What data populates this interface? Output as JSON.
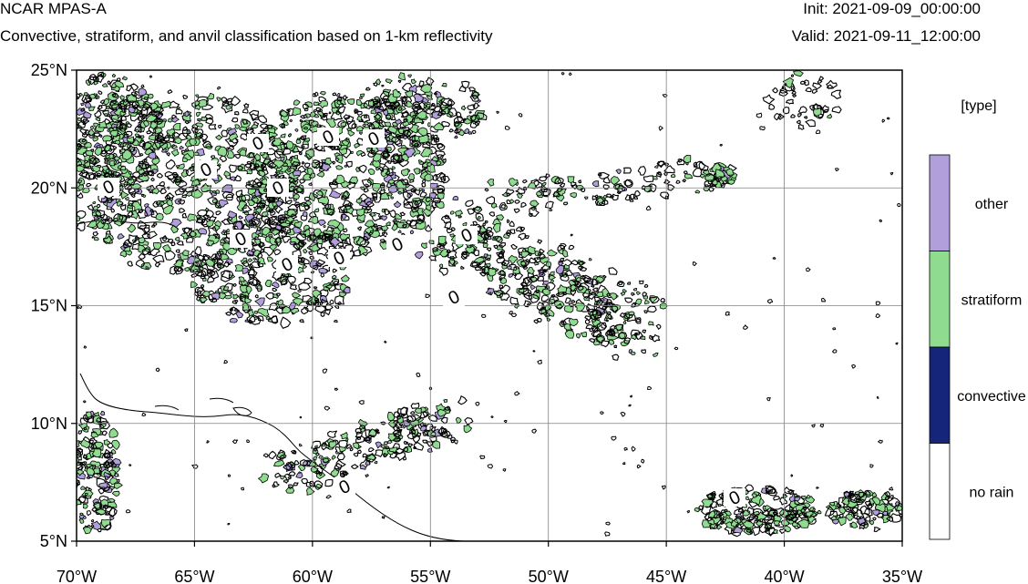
{
  "header": {
    "title": "NCAR MPAS-A",
    "subtitle": "Convective, stratiform, and anvil classification based on 1-km reflectivity",
    "init": "Init: 2021-09-09_00:00:00",
    "valid": "Valid: 2021-09-11_12:00:00"
  },
  "map": {
    "lon_range": [
      -70,
      -35
    ],
    "lat_range": [
      5,
      25
    ],
    "grid": true,
    "contour_label": "0",
    "lat_ticks": [
      {
        "value": 25,
        "label": "25°N"
      },
      {
        "value": 20,
        "label": "20°N"
      },
      {
        "value": 15,
        "label": "15°N"
      },
      {
        "value": 10,
        "label": "10°N"
      },
      {
        "value": 5,
        "label": "5°N"
      }
    ],
    "lon_ticks": [
      {
        "value": -70,
        "label": "70°W"
      },
      {
        "value": -65,
        "label": "65°W"
      },
      {
        "value": -60,
        "label": "60°W"
      },
      {
        "value": -55,
        "label": "55°W"
      },
      {
        "value": -50,
        "label": "50°W"
      },
      {
        "value": -45,
        "label": "45°W"
      },
      {
        "value": -40,
        "label": "40°W"
      },
      {
        "value": -35,
        "label": "35°W"
      }
    ]
  },
  "colorbar": {
    "title": "[type]",
    "classes": [
      {
        "label": "other",
        "color": "#b19fdc"
      },
      {
        "label": "stratiform",
        "color": "#8fdc91"
      },
      {
        "label": "convective",
        "color": "#15267a"
      },
      {
        "label": "no rain",
        "color": "#ffffff"
      }
    ]
  },
  "colors": {
    "stratiform": "#8fdc91",
    "other": "#b19fdc",
    "contour": "#000000",
    "grid": "#808080"
  }
}
